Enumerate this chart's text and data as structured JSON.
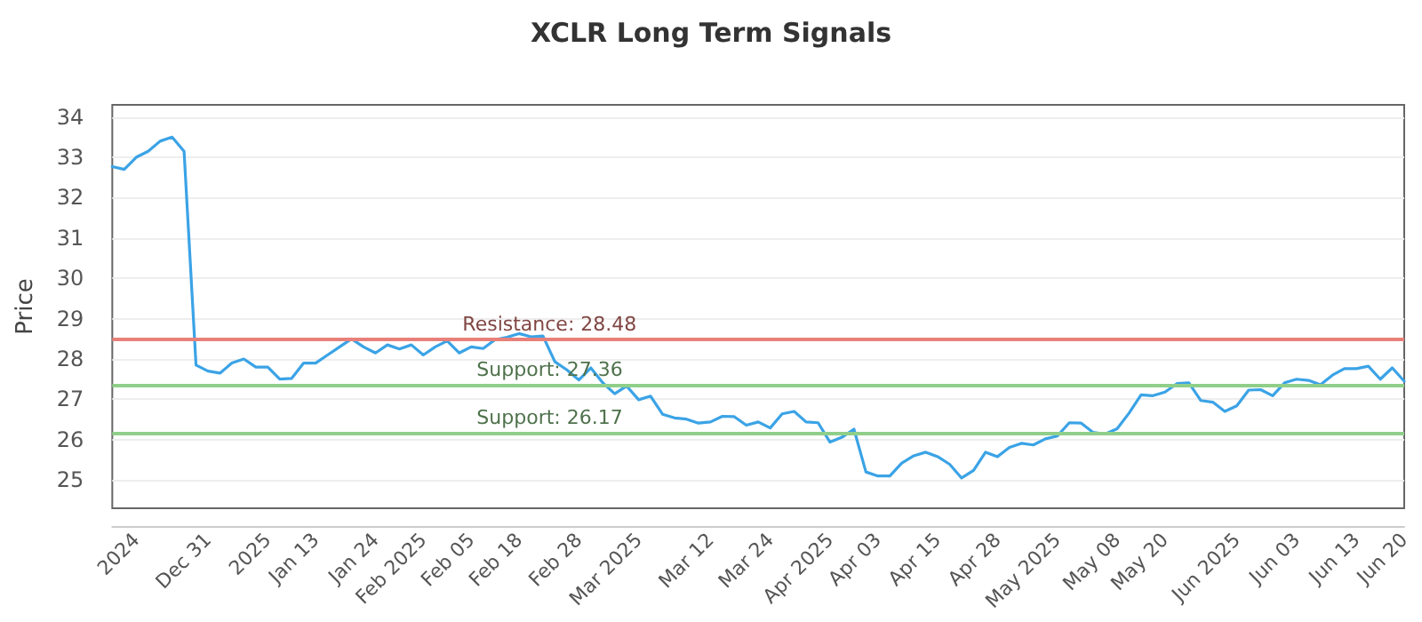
{
  "chart_data": {
    "type": "line",
    "title": "XCLR Long Term Signals",
    "ylabel": "Price",
    "categories": [
      null,
      null,
      "2024",
      null,
      null,
      null,
      null,
      null,
      "Dec 31",
      null,
      null,
      null,
      null,
      "2025",
      null,
      null,
      null,
      "Jan 13",
      null,
      null,
      null,
      null,
      "Jan 24",
      null,
      null,
      null,
      "Feb 2025",
      null,
      null,
      null,
      "Feb 05",
      null,
      null,
      null,
      "Feb 18",
      null,
      null,
      null,
      null,
      "Feb 28",
      null,
      null,
      null,
      null,
      "Mar 2025",
      null,
      null,
      null,
      null,
      null,
      "Mar 12",
      null,
      null,
      null,
      null,
      "Mar 24",
      null,
      null,
      null,
      null,
      "Apr 2025",
      null,
      null,
      null,
      "Apr 03",
      null,
      null,
      null,
      null,
      "Apr 15",
      null,
      null,
      null,
      null,
      "Apr 28",
      null,
      null,
      null,
      null,
      "May 2025",
      null,
      null,
      null,
      null,
      "May 08",
      null,
      null,
      null,
      "May 20",
      null,
      null,
      null,
      null,
      null,
      "Jun 2025",
      null,
      null,
      null,
      null,
      "Jun 03",
      null,
      null,
      null,
      null,
      "Jun 13",
      null,
      null,
      null,
      "Jun 20"
    ],
    "series": [
      {
        "color": "#3ba3e6",
        "values": [
          32.77,
          32.7,
          33.0,
          33.15,
          33.4,
          33.5,
          33.15,
          27.85,
          27.7,
          27.65,
          27.9,
          28.0,
          27.8,
          27.8,
          27.5,
          27.52,
          27.9,
          27.9,
          28.1,
          28.3,
          28.5,
          28.3,
          28.15,
          28.35,
          28.25,
          28.35,
          28.1,
          28.3,
          28.45,
          28.15,
          28.3,
          28.26,
          28.48,
          28.54,
          28.63,
          28.55,
          28.57,
          27.93,
          27.73,
          27.48,
          27.78,
          27.41,
          27.14,
          27.33,
          26.99,
          27.08,
          26.63,
          26.54,
          26.51,
          26.41,
          26.44,
          26.58,
          26.57,
          26.36,
          26.44,
          26.29,
          26.64,
          26.7,
          26.44,
          26.42,
          25.94,
          26.06,
          26.26,
          25.2,
          25.1,
          25.1,
          25.42,
          25.6,
          25.69,
          25.58,
          25.39,
          25.05,
          25.24,
          25.69,
          25.58,
          25.81,
          25.91,
          25.87,
          26.02,
          26.09,
          26.42,
          26.41,
          26.18,
          26.14,
          26.27,
          26.66,
          27.11,
          27.09,
          27.18,
          27.39,
          27.41,
          26.97,
          26.93,
          26.7,
          26.84,
          27.23,
          27.24,
          27.09,
          27.41,
          27.5,
          27.47,
          27.36,
          27.6,
          27.76,
          27.76,
          27.82,
          27.5,
          27.78,
          27.45
        ]
      }
    ],
    "ylim": [
      24.3,
      34.3
    ],
    "yticks": [
      25,
      26,
      27,
      28,
      29,
      30,
      31,
      32,
      33,
      34
    ],
    "ref_lines": [
      {
        "axis": "y",
        "value": 28.48,
        "label": "Resistance: 28.48",
        "color": "#e8807a"
      },
      {
        "axis": "y",
        "value": 27.36,
        "label": "Support: 27.36",
        "color": "#8fcf8a"
      },
      {
        "axis": "y",
        "value": 26.17,
        "label": "Support: 26.17",
        "color": "#8fcf8a"
      }
    ],
    "grid": "y",
    "marker": "none",
    "line_style": "solid"
  }
}
